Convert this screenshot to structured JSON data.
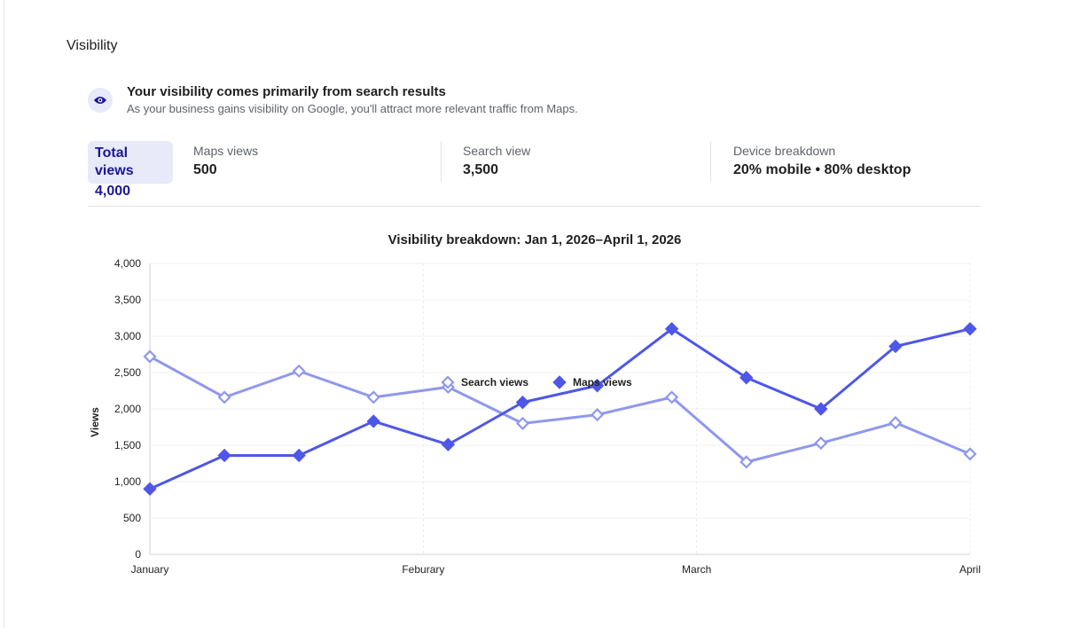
{
  "section": {
    "title": "Visibility"
  },
  "insight": {
    "icon": "eye-icon",
    "title": "Your visibility comes primarily from search results",
    "subtitle": "As your business gains visibility on Google, you'll attract more relevant traffic from Maps."
  },
  "stats": {
    "total": {
      "label": "Total views",
      "value": "4,000"
    },
    "maps": {
      "label": "Maps views",
      "value": "500"
    },
    "search": {
      "label": "Search view",
      "value": "3,500"
    },
    "device": {
      "label": "Device breakdown",
      "value": "20% mobile • 80% desktop"
    }
  },
  "colors": {
    "accent": "#1a1796",
    "maps": "#4e57e8",
    "search": "#8f98ec",
    "highlight_bg": "#e8e9f9"
  },
  "chart_data": {
    "type": "line",
    "title": "Visibility breakdown: Jan 1, 2026–April 1, 2026",
    "ylabel": "Views",
    "xlabel": "",
    "ylim": [
      0,
      4000
    ],
    "yticks": [
      "0",
      "500",
      "1,000",
      "1,500",
      "2,000",
      "2,500",
      "3,000",
      "3,500",
      "4,000"
    ],
    "ytick_values": [
      0,
      500,
      1000,
      1500,
      2000,
      2500,
      3000,
      3500,
      4000
    ],
    "xticks": [
      "January",
      "Feburary",
      "March",
      "April"
    ],
    "xtick_positions": [
      0,
      3.667,
      7.333,
      11
    ],
    "x": [
      0,
      1,
      2,
      3,
      4,
      5,
      6,
      7,
      8,
      9,
      10,
      11
    ],
    "xlim": [
      0,
      11
    ],
    "grid": true,
    "legend": "bottom",
    "series": [
      {
        "name": "Search views",
        "marker": "diamond-open",
        "values": [
          2720,
          2160,
          2520,
          2160,
          2300,
          1800,
          1920,
          2160,
          1270,
          1530,
          1810,
          1380
        ]
      },
      {
        "name": "Maps views",
        "marker": "diamond-filled",
        "values": [
          900,
          1360,
          1360,
          1830,
          1510,
          2090,
          2320,
          3100,
          2430,
          2000,
          2860,
          3100
        ]
      }
    ]
  }
}
